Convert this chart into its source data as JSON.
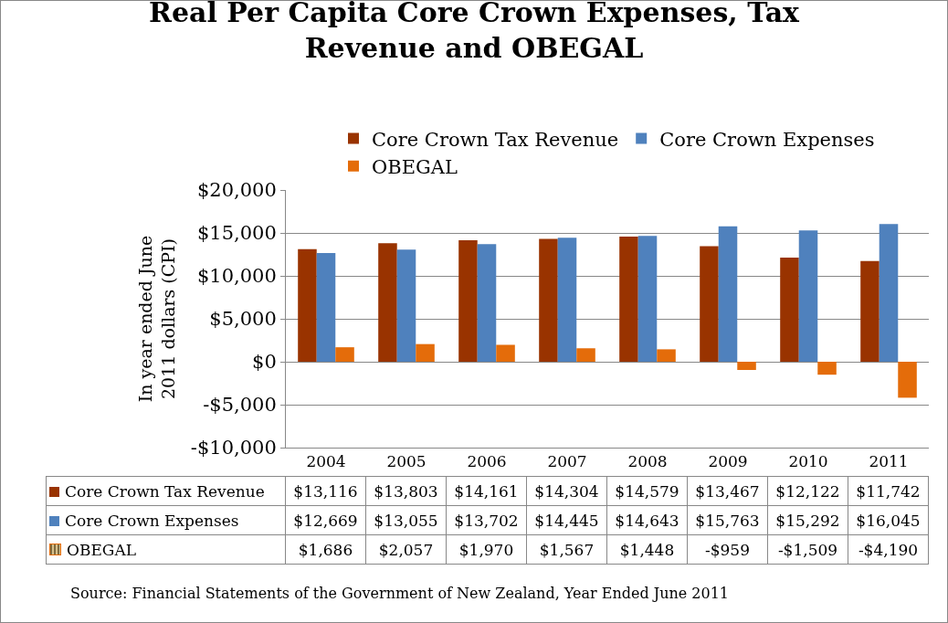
{
  "chart_data": {
    "type": "bar",
    "title": "Real Per Capita Core Crown Expenses, Tax\nRevenue and OBEGAL",
    "ylabel": "In year ended June\n2011 dollars (CPI)",
    "categories": [
      "2004",
      "2005",
      "2006",
      "2007",
      "2008",
      "2009",
      "2010",
      "2011"
    ],
    "series": [
      {
        "name": "Core Crown Tax Revenue",
        "color": "#993300",
        "values": [
          13116,
          13803,
          14161,
          14304,
          14579,
          13467,
          12122,
          11742
        ],
        "value_labels": [
          "$13,116",
          "$13,803",
          "$14,161",
          "$14,304",
          "$14,579",
          "$13,467",
          "$12,122",
          "$11,742"
        ]
      },
      {
        "name": "Core Crown Expenses",
        "color": "#4f81bd",
        "values": [
          12669,
          13055,
          13702,
          14445,
          14643,
          15763,
          15292,
          16045
        ],
        "value_labels": [
          "$12,669",
          "$13,055",
          "$13,702",
          "$14,445",
          "$14,643",
          "$15,763",
          "$15,292",
          "$16,045"
        ]
      },
      {
        "name": "OBEGAL",
        "color": "#e46c0a",
        "values": [
          1686,
          2057,
          1970,
          1567,
          1448,
          -959,
          -1509,
          -4190
        ],
        "value_labels": [
          "$1,686",
          "$2,057",
          "$1,970",
          "$1,567",
          "$1,448",
          "-$959",
          "-$1,509",
          "-$4,190"
        ]
      }
    ],
    "ylim": [
      -10000,
      20000
    ],
    "yticks": [
      {
        "value": -10000,
        "label": "-$10,000"
      },
      {
        "value": -5000,
        "label": "-$5,000"
      },
      {
        "value": 0,
        "label": "$0"
      },
      {
        "value": 5000,
        "label": "$5,000"
      },
      {
        "value": 10000,
        "label": "$10,000"
      },
      {
        "value": 15000,
        "label": "$15,000"
      },
      {
        "value": 20000,
        "label": "$20,000"
      }
    ],
    "grid": "y",
    "legend": "top",
    "annotations": [
      "Source: Financial Statements of the Government of New Zealand, Year Ended June 2011"
    ]
  }
}
